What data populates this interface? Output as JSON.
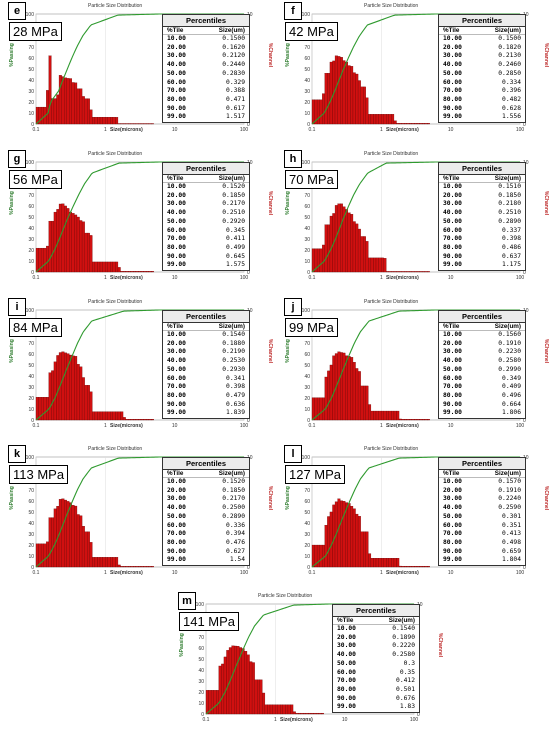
{
  "chart_title": "Particle Size Distribution",
  "table_title": "Percentiles",
  "table_cols": [
    "%Tile",
    "Size(um)"
  ],
  "xlabel": "Size(microns)",
  "ylabel_left": "%Passing",
  "ylabel_right": "%Channel",
  "colors": {
    "bars": "#d01010",
    "curve": "#2f9a2f"
  },
  "chart_data": [
    {
      "type": "bar",
      "panel": "e",
      "label": "28 MPa",
      "xscale": "log",
      "xlim": [
        0.1,
        100
      ],
      "ylim_left": [
        0,
        100
      ],
      "ylim_right": [
        0,
        10
      ],
      "percentiles": [
        [
          10,
          0.15
        ],
        [
          20,
          0.162
        ],
        [
          30,
          0.212
        ],
        [
          40,
          0.244
        ],
        [
          50,
          0.283
        ],
        [
          60,
          0.329
        ],
        [
          70,
          0.388
        ],
        [
          80,
          0.471
        ],
        [
          90,
          0.617
        ],
        [
          99,
          1.517
        ]
      ]
    },
    {
      "type": "bar",
      "panel": "f",
      "label": "42 MPa",
      "xscale": "log",
      "xlim": [
        0.1,
        100
      ],
      "ylim_left": [
        0,
        100
      ],
      "ylim_right": [
        0,
        10
      ],
      "percentiles": [
        [
          10,
          0.15
        ],
        [
          20,
          0.182
        ],
        [
          30,
          0.213
        ],
        [
          40,
          0.246
        ],
        [
          50,
          0.285
        ],
        [
          60,
          0.334
        ],
        [
          70,
          0.396
        ],
        [
          80,
          0.482
        ],
        [
          90,
          0.628
        ],
        [
          99,
          1.556
        ]
      ]
    },
    {
      "type": "bar",
      "panel": "g",
      "label": "56 MPa",
      "xscale": "log",
      "xlim": [
        0.1,
        100
      ],
      "ylim_left": [
        0,
        100
      ],
      "ylim_right": [
        0,
        10
      ],
      "percentiles": [
        [
          10,
          0.152
        ],
        [
          20,
          0.185
        ],
        [
          30,
          0.217
        ],
        [
          40,
          0.251
        ],
        [
          50,
          0.292
        ],
        [
          60,
          0.345
        ],
        [
          70,
          0.411
        ],
        [
          80,
          0.499
        ],
        [
          90,
          0.645
        ],
        [
          99,
          1.575
        ]
      ]
    },
    {
      "type": "bar",
      "panel": "h",
      "label": "70 MPa",
      "xscale": "log",
      "xlim": [
        0.1,
        100
      ],
      "ylim_left": [
        0,
        100
      ],
      "ylim_right": [
        0,
        10
      ],
      "percentiles": [
        [
          10,
          0.151
        ],
        [
          20,
          0.185
        ],
        [
          30,
          0.218
        ],
        [
          40,
          0.251
        ],
        [
          50,
          0.289
        ],
        [
          60,
          0.337
        ],
        [
          70,
          0.398
        ],
        [
          80,
          0.486
        ],
        [
          90,
          0.637
        ],
        [
          99,
          1.175
        ]
      ]
    },
    {
      "type": "bar",
      "panel": "i",
      "label": "84 MPa",
      "xscale": "log",
      "xlim": [
        0.1,
        100
      ],
      "ylim_left": [
        0,
        100
      ],
      "ylim_right": [
        0,
        10
      ],
      "percentiles": [
        [
          10,
          0.154
        ],
        [
          20,
          0.188
        ],
        [
          30,
          0.219
        ],
        [
          40,
          0.253
        ],
        [
          50,
          0.293
        ],
        [
          60,
          0.341
        ],
        [
          70,
          0.398
        ],
        [
          80,
          0.479
        ],
        [
          90,
          0.636
        ],
        [
          99,
          1.839
        ]
      ]
    },
    {
      "type": "bar",
      "panel": "j",
      "label": "99 MPa",
      "xscale": "log",
      "xlim": [
        0.1,
        100
      ],
      "ylim_left": [
        0,
        100
      ],
      "ylim_right": [
        0,
        10
      ],
      "percentiles": [
        [
          10,
          0.156
        ],
        [
          20,
          0.191
        ],
        [
          30,
          0.223
        ],
        [
          40,
          0.258
        ],
        [
          50,
          0.299
        ],
        [
          60,
          0.349
        ],
        [
          70,
          0.409
        ],
        [
          80,
          0.496
        ],
        [
          90,
          0.664
        ],
        [
          99,
          1.806
        ]
      ]
    },
    {
      "type": "bar",
      "panel": "k",
      "label": "113 MPa",
      "xscale": "log",
      "xlim": [
        0.1,
        100
      ],
      "ylim_left": [
        0,
        100
      ],
      "ylim_right": [
        0,
        10
      ],
      "percentiles": [
        [
          10,
          0.152
        ],
        [
          20,
          0.185
        ],
        [
          30,
          0.217
        ],
        [
          40,
          0.25
        ],
        [
          50,
          0.289
        ],
        [
          60,
          0.336
        ],
        [
          70,
          0.394
        ],
        [
          80,
          0.476
        ],
        [
          90,
          0.627
        ],
        [
          99,
          1.54
        ]
      ]
    },
    {
      "type": "bar",
      "panel": "l",
      "label": "127 MPa",
      "xscale": "log",
      "xlim": [
        0.1,
        100
      ],
      "ylim_left": [
        0,
        100
      ],
      "ylim_right": [
        0,
        10
      ],
      "percentiles": [
        [
          10,
          0.157
        ],
        [
          20,
          0.191
        ],
        [
          30,
          0.224
        ],
        [
          40,
          0.259
        ],
        [
          50,
          0.301
        ],
        [
          60,
          0.351
        ],
        [
          70,
          0.413
        ],
        [
          80,
          0.498
        ],
        [
          90,
          0.659
        ],
        [
          99,
          1.804
        ]
      ]
    },
    {
      "type": "bar",
      "panel": "m",
      "label": "141 MPa",
      "xscale": "log",
      "xlim": [
        0.1,
        100
      ],
      "ylim_left": [
        0,
        100
      ],
      "ylim_right": [
        0,
        10
      ],
      "percentiles": [
        [
          10,
          0.154
        ],
        [
          20,
          0.189
        ],
        [
          30,
          0.222
        ],
        [
          40,
          0.258
        ],
        [
          50,
          0.3
        ],
        [
          60,
          0.35
        ],
        [
          70,
          0.412
        ],
        [
          80,
          0.501
        ],
        [
          90,
          0.676
        ],
        [
          99,
          1.83
        ]
      ]
    }
  ]
}
